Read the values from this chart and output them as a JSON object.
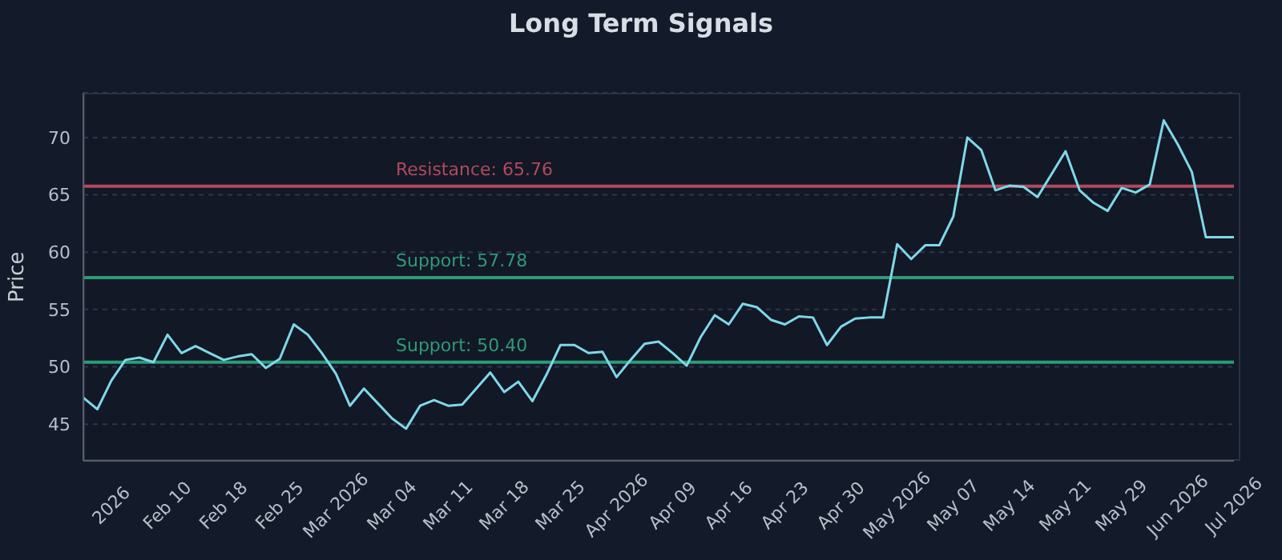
{
  "chart_data": {
    "type": "line",
    "title": "Long Term Signals",
    "ylabel": "Price",
    "categories": [
      null,
      null,
      "2026",
      null,
      null,
      null,
      "Feb 10",
      null,
      null,
      null,
      "Feb 18",
      null,
      null,
      null,
      "Feb 25",
      null,
      null,
      null,
      "Mar 2026",
      null,
      null,
      null,
      "Mar 04",
      null,
      null,
      null,
      "Mar 11",
      null,
      null,
      null,
      "Mar 18",
      null,
      null,
      null,
      "Mar 25",
      null,
      null,
      null,
      "Apr 2026",
      null,
      null,
      null,
      "Apr 09",
      null,
      null,
      null,
      "Apr 16",
      null,
      null,
      null,
      "Apr 23",
      null,
      null,
      null,
      "Apr 30",
      null,
      null,
      null,
      "May 2026",
      null,
      null,
      null,
      "May 07",
      null,
      null,
      null,
      "May 14",
      null,
      null,
      null,
      "May 21",
      null,
      null,
      null,
      "May 29",
      null,
      null,
      null,
      "Jun 2026",
      null,
      null,
      null,
      "Jul 2026"
    ],
    "series": [
      {
        "color": "#7fd8e8",
        "values": [
          47.3,
          46.3,
          48.8,
          50.6,
          50.8,
          50.4,
          52.8,
          51.2,
          51.8,
          51.2,
          50.6,
          50.9,
          51.1,
          49.9,
          50.7,
          53.7,
          52.8,
          51.2,
          49.4,
          46.6,
          48.1,
          46.8,
          45.5,
          44.6,
          46.6,
          47.1,
          46.6,
          46.7,
          48.1,
          49.5,
          47.8,
          48.7,
          47.0,
          49.3,
          51.9,
          51.9,
          51.2,
          51.3,
          49.1,
          50.6,
          52.0,
          52.2,
          51.2,
          50.1,
          52.6,
          54.5,
          53.7,
          55.5,
          55.2,
          54.1,
          53.7,
          54.4,
          54.3,
          51.9,
          53.5,
          54.2,
          54.3,
          54.3,
          60.7,
          59.4,
          60.6,
          60.6,
          63.1,
          70.0,
          68.9,
          65.4,
          65.8,
          65.7,
          64.8,
          66.8,
          68.8,
          65.4,
          64.3,
          63.6,
          65.6,
          65.2,
          65.9,
          71.5,
          69.4,
          67.0,
          61.3,
          61.3,
          61.3
        ]
      }
    ],
    "ylim": [
      41.8,
      73.9
    ],
    "yticks": [
      45,
      50,
      55,
      60,
      65,
      70
    ],
    "grid": "y",
    "legend": false,
    "marker": "none",
    "line_style": "solid",
    "ref_lines": [
      {
        "axis": "y",
        "value": 65.76,
        "label": "Resistance: 65.76",
        "color": "#b04a5c"
      },
      {
        "axis": "y",
        "value": 57.78,
        "label": "Support: 57.78",
        "color": "#2e9a78"
      },
      {
        "axis": "y",
        "value": 50.4,
        "label": "Support: 50.40",
        "color": "#2e9a78"
      }
    ]
  }
}
